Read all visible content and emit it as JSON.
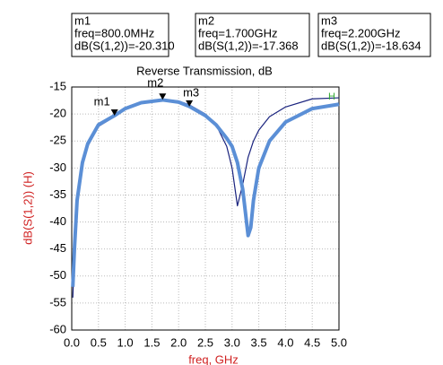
{
  "chart_data": {
    "type": "line",
    "title": "Reverse Transmission, dB",
    "xlabel": "freq, GHz",
    "ylabel": "dB(S(1,2))  (H)",
    "trace_label": "H",
    "xlim": [
      0,
      5
    ],
    "ylim": [
      -60,
      -15
    ],
    "xticks": [
      {
        "value": 0,
        "label": "0.0"
      },
      {
        "value": 0.5,
        "label": "0.5"
      },
      {
        "value": 1,
        "label": "1.0"
      },
      {
        "value": 1.5,
        "label": "1.5"
      },
      {
        "value": 2,
        "label": "2.0"
      },
      {
        "value": 2.5,
        "label": "2.5"
      },
      {
        "value": 3,
        "label": "3.0"
      },
      {
        "value": 3.5,
        "label": "3.5"
      },
      {
        "value": 4,
        "label": "4.0"
      },
      {
        "value": 4.5,
        "label": "4.5"
      },
      {
        "value": 5,
        "label": "5.0"
      }
    ],
    "yticks": [
      -15,
      -20,
      -25,
      -30,
      -35,
      -40,
      -45,
      -50,
      -55,
      -60
    ],
    "grid": true,
    "x": [
      0.02,
      0.05,
      0.1,
      0.2,
      0.3,
      0.5,
      0.8,
      1.0,
      1.3,
      1.7,
      2.0,
      2.2,
      2.5,
      2.7,
      2.9,
      3.0,
      3.1,
      3.2,
      3.3,
      3.35,
      3.4,
      3.5,
      3.7,
      4.0,
      4.5,
      5.0
    ],
    "series": [
      {
        "color": "#1a237e",
        "width": 1.2,
        "values": [
          -54,
          -46,
          -37,
          -29.5,
          -26,
          -22.3,
          -20.5,
          -19.2,
          -17.9,
          -17.3,
          -17.6,
          -18.3,
          -20,
          -22,
          -26,
          -30,
          -37,
          -33,
          -28,
          -26.5,
          -25,
          -23,
          -20.5,
          -18.7,
          -17.2,
          -17
        ]
      },
      {
        "color": "#5b8fd6",
        "width": 4,
        "values": [
          -52,
          -45,
          -36,
          -29,
          -25.5,
          -22,
          -20.3,
          -19,
          -17.9,
          -17.4,
          -17.8,
          -18.6,
          -20.3,
          -22,
          -24.5,
          -26,
          -29,
          -34,
          -42.5,
          -41,
          -36,
          -30,
          -25,
          -21.5,
          -19,
          -18.2
        ]
      }
    ],
    "markers": [
      {
        "name": "m1",
        "freq": "freq=800.0MHz",
        "readout": "dB(S(1,2))=-20.310",
        "x": 0.8,
        "y": -20.31
      },
      {
        "name": "m2",
        "freq": "freq=1.700GHz",
        "readout": "dB(S(1,2))=-17.368",
        "x": 1.7,
        "y": -17.368
      },
      {
        "name": "m3",
        "freq": "freq=2.200GHz",
        "readout": "dB(S(1,2))=-18.634",
        "x": 2.2,
        "y": -18.634
      }
    ]
  }
}
